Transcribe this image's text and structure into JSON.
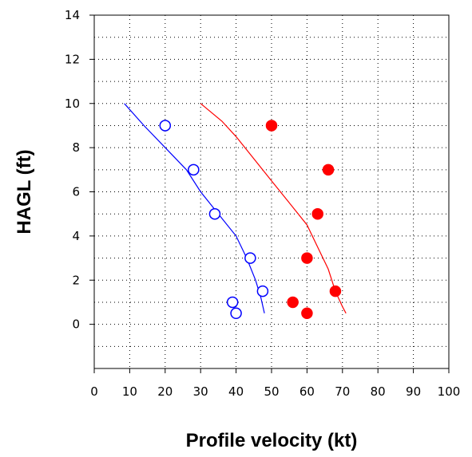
{
  "chart_data": {
    "type": "scatter",
    "title": "",
    "xlabel": "Profile velocity (kt)",
    "ylabel": "HAGL (ft)",
    "xlim": [
      0,
      100
    ],
    "ylim": [
      -2,
      14
    ],
    "x_ticks": [
      0,
      10,
      20,
      30,
      40,
      50,
      60,
      70,
      80,
      90,
      100
    ],
    "y_ticks": [
      0,
      2,
      4,
      6,
      8,
      10,
      12,
      14
    ],
    "grid": true,
    "grid_style": "dotted",
    "legend": "none",
    "series": [
      {
        "kind": "points",
        "marker": "open-circle",
        "color": "#0000ff",
        "points": [
          [
            20,
            9
          ],
          [
            28,
            7
          ],
          [
            34,
            5
          ],
          [
            44,
            3
          ],
          [
            47.5,
            1.5
          ],
          [
            39,
            1
          ],
          [
            40,
            0.5
          ]
        ]
      },
      {
        "kind": "points",
        "marker": "filled-circle",
        "color": "#ff0000",
        "points": [
          [
            50,
            9
          ],
          [
            66,
            7
          ],
          [
            63,
            5
          ],
          [
            60,
            3
          ],
          [
            68,
            1.5
          ],
          [
            56,
            1
          ],
          [
            60,
            0.5
          ]
        ]
      },
      {
        "kind": "line",
        "color": "#0000ff",
        "points": [
          [
            8.5,
            10
          ],
          [
            14,
            9
          ],
          [
            20,
            8
          ],
          [
            26,
            7
          ],
          [
            30,
            6
          ],
          [
            35,
            5
          ],
          [
            40,
            4
          ],
          [
            43,
            3
          ],
          [
            45.5,
            2
          ],
          [
            47,
            1.2
          ],
          [
            48,
            0.5
          ]
        ]
      },
      {
        "kind": "line",
        "color": "#ff0000",
        "points": [
          [
            30,
            10
          ],
          [
            36,
            9.2
          ],
          [
            40,
            8.5
          ],
          [
            45,
            7.5
          ],
          [
            50,
            6.5
          ],
          [
            55,
            5.5
          ],
          [
            60,
            4.5
          ],
          [
            63,
            3.5
          ],
          [
            66,
            2.5
          ],
          [
            68,
            1.5
          ],
          [
            70,
            0.8
          ],
          [
            71,
            0.5
          ]
        ]
      }
    ]
  }
}
